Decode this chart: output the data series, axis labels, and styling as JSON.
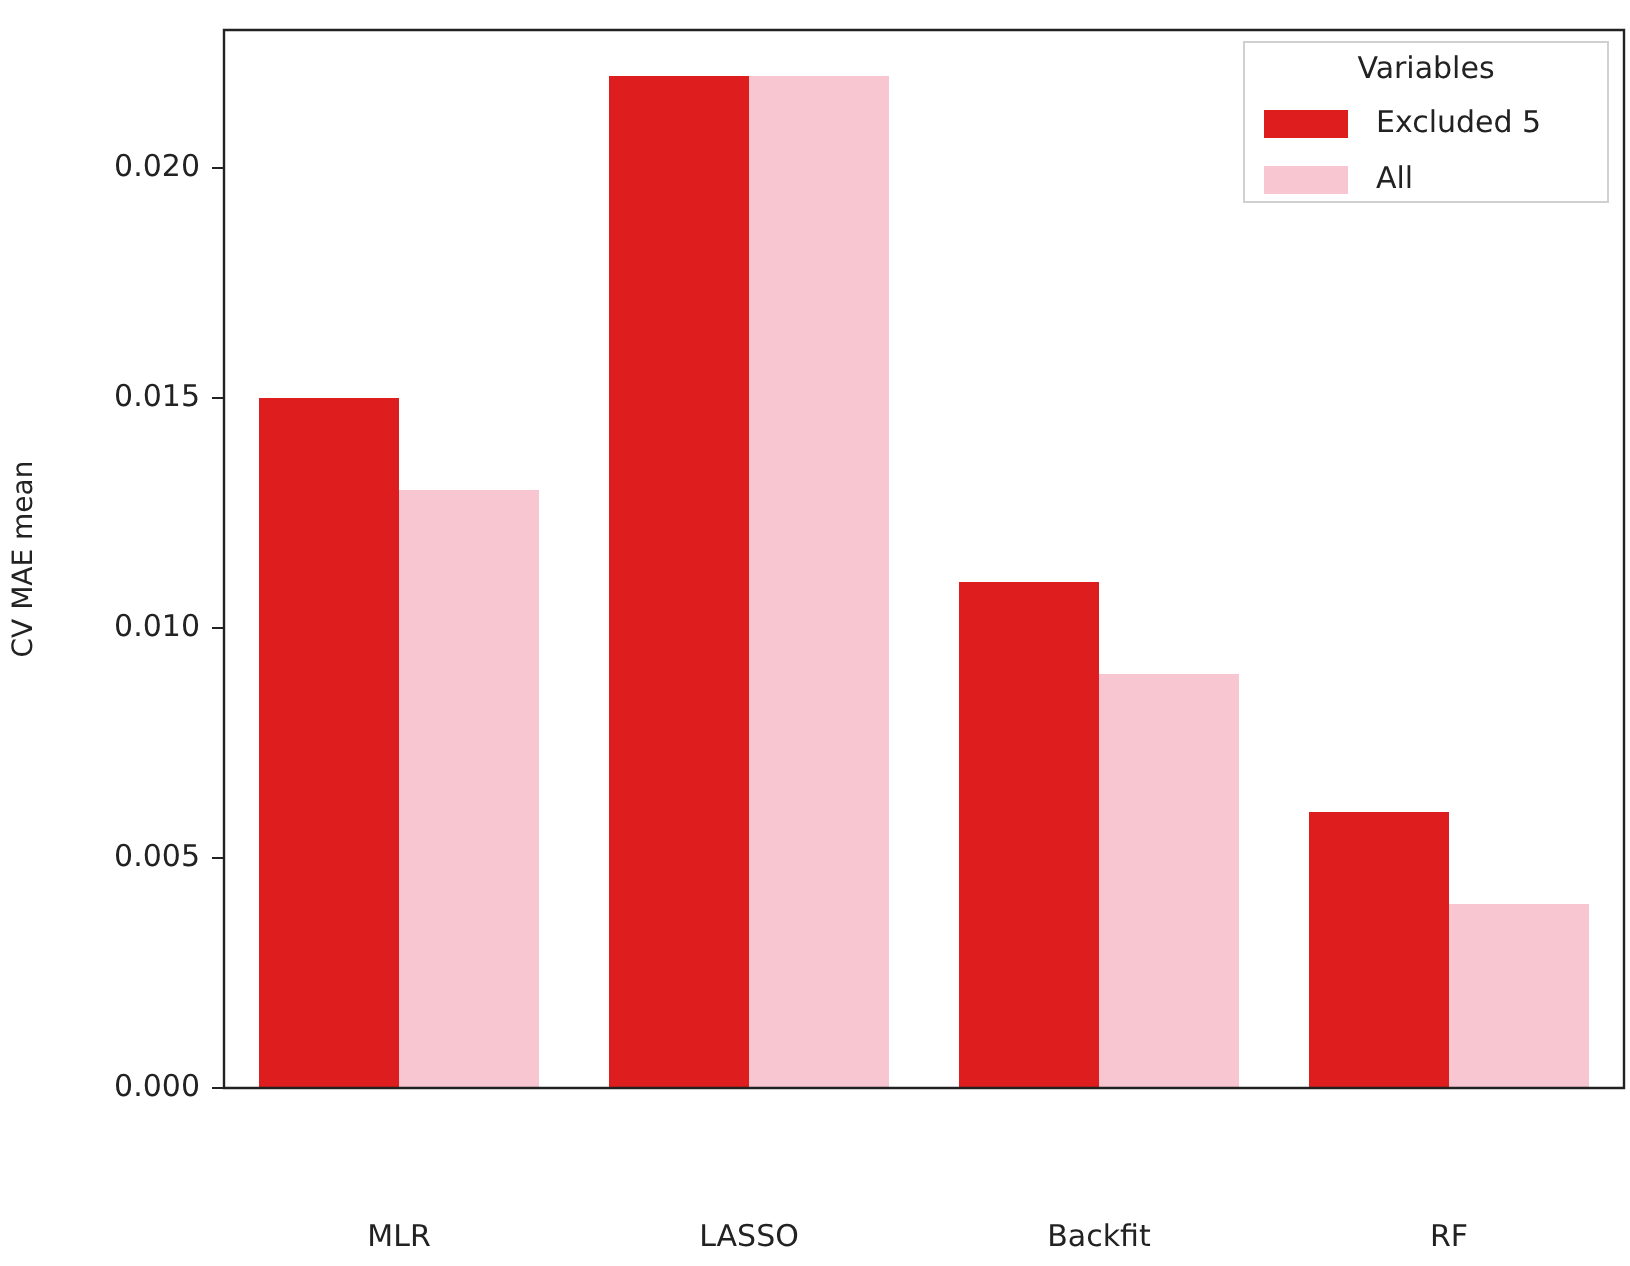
{
  "chart_data": {
    "type": "bar",
    "ylabel": "CV MAE mean",
    "legend_title": "Variables",
    "legend": "top right",
    "grid": false,
    "categories": [
      "MLR",
      "LASSO",
      "Backfit",
      "RF"
    ],
    "series": [
      {
        "name": "Excluded 5",
        "color": "#de1e1e",
        "values": [
          0.015,
          0.022,
          0.011,
          0.006
        ]
      },
      {
        "name": "All",
        "color": "#f8c6d0",
        "values": [
          0.013,
          0.022,
          0.009,
          0.004
        ]
      }
    ],
    "ylim": [
      0,
      0.023
    ],
    "yticks": [
      {
        "value": 0,
        "label": "0.000"
      },
      {
        "value": 0.005,
        "label": "0.005"
      },
      {
        "value": 0.01,
        "label": "0.010"
      },
      {
        "value": 0.015,
        "label": "0.015"
      },
      {
        "value": 0.02,
        "label": "0.020"
      }
    ]
  }
}
